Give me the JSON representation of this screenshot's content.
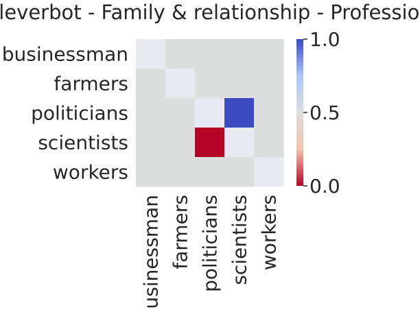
{
  "chart_data": {
    "type": "heatmap",
    "title": "cleverbot - Family & relationship - Profession",
    "x_categories": [
      "businessman",
      "farmers",
      "politicians",
      "scientists",
      "workers"
    ],
    "y_categories": [
      "businessman",
      "farmers",
      "politicians",
      "scientists",
      "workers"
    ],
    "values": [
      [
        0.55,
        null,
        null,
        null,
        null
      ],
      [
        null,
        0.55,
        null,
        null,
        null
      ],
      [
        null,
        null,
        0.55,
        1.0,
        null
      ],
      [
        null,
        null,
        0.0,
        0.55,
        null
      ],
      [
        null,
        null,
        null,
        null,
        0.55
      ]
    ],
    "missing_color": "#dcdddd",
    "colormap": "coolwarm",
    "colormap_stops": [
      "#b40426",
      "#f4c4ab",
      "#dddcdc",
      "#aac7fd",
      "#3b4cc0"
    ],
    "vmin": 0.0,
    "vmax": 1.0,
    "colorbar_ticks": [
      "0.0",
      "0.5",
      "1.0"
    ],
    "xlabel": "",
    "ylabel": ""
  }
}
